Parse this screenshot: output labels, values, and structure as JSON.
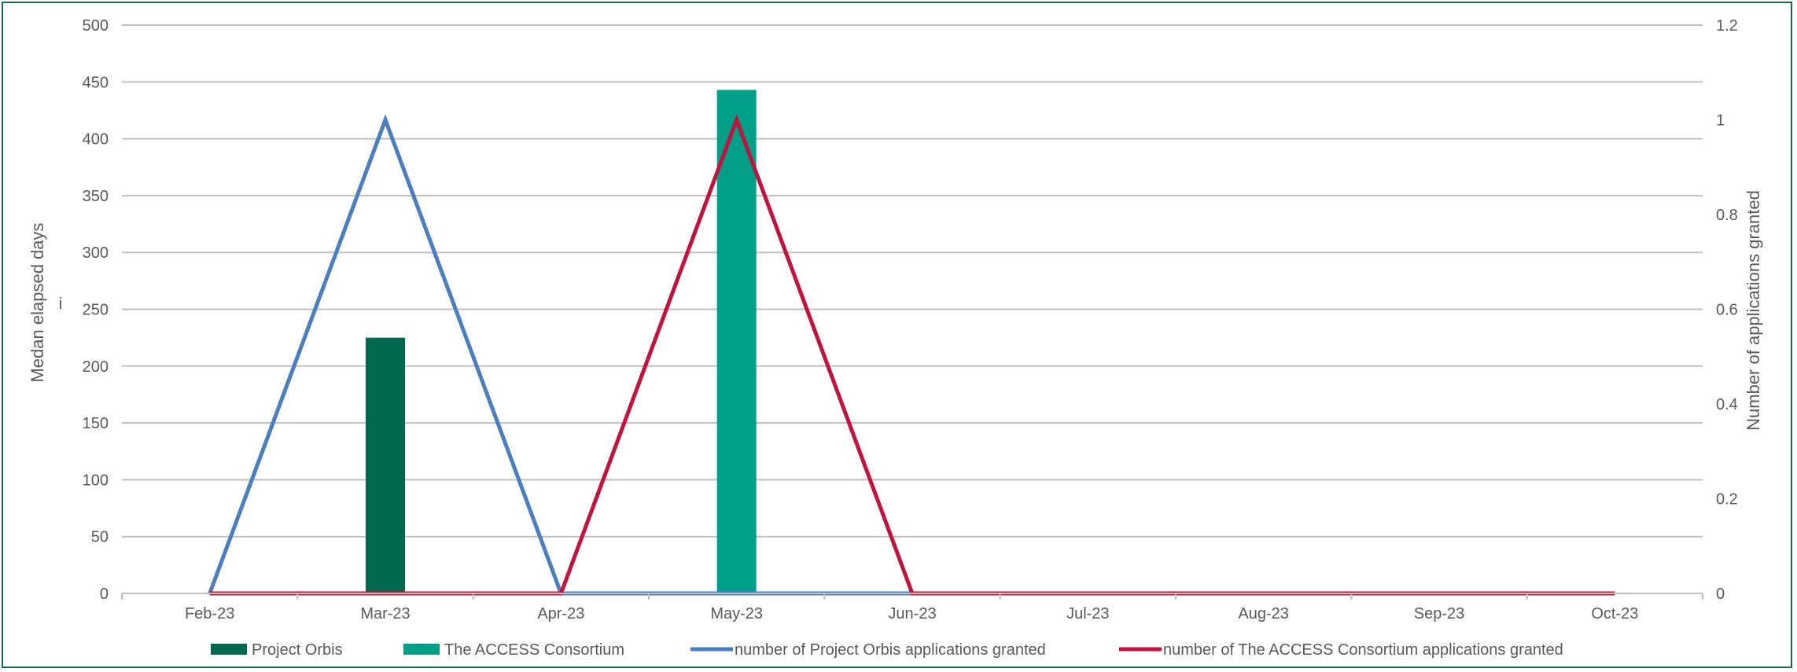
{
  "chart_data": {
    "type": "bar",
    "categories": [
      "Feb-23",
      "Mar-23",
      "Apr-23",
      "May-23",
      "Jun-23",
      "Jul-23",
      "Aug-23",
      "Sep-23",
      "Oct-23"
    ],
    "series": [
      {
        "name": "Project Orbis",
        "kind": "bar",
        "axis": "left",
        "color": "#00684f",
        "values": [
          0,
          225,
          0,
          0,
          0,
          0,
          0,
          0,
          0
        ]
      },
      {
        "name": "The ACCESS Consortium",
        "kind": "bar",
        "axis": "left",
        "color": "#00a088",
        "values": [
          0,
          0,
          0,
          443,
          0,
          0,
          0,
          0,
          0
        ]
      },
      {
        "name": "number of Project Orbis applications granted",
        "kind": "line",
        "axis": "right",
        "color": "#4a7ebf",
        "values": [
          0,
          1,
          0,
          0,
          0,
          null,
          null,
          null,
          null
        ]
      },
      {
        "name": "number of The ACCESS Consortium applications granted",
        "kind": "line",
        "axis": "right",
        "color": "#c0143c",
        "values": [
          0,
          0,
          0,
          1,
          0,
          0,
          0,
          0,
          0
        ]
      }
    ],
    "ylabel": "Medan elapsed days",
    "ylabel_mark": "i",
    "y2label": "Number of applications granted",
    "ylim": [
      0,
      500
    ],
    "y_ticks": [
      "0",
      "50",
      "100",
      "150",
      "200",
      "250",
      "300",
      "350",
      "400",
      "450",
      "500"
    ],
    "y2lim": [
      0,
      1.2
    ],
    "y2_ticks": [
      "0",
      "0.2",
      "0.4",
      "0.6",
      "0.8",
      "1",
      "1.2"
    ],
    "grid": true,
    "legend_position": "bottom"
  },
  "colors": {
    "frame": "#17694a",
    "grid": "#bfbfbf",
    "text": "#595959"
  }
}
